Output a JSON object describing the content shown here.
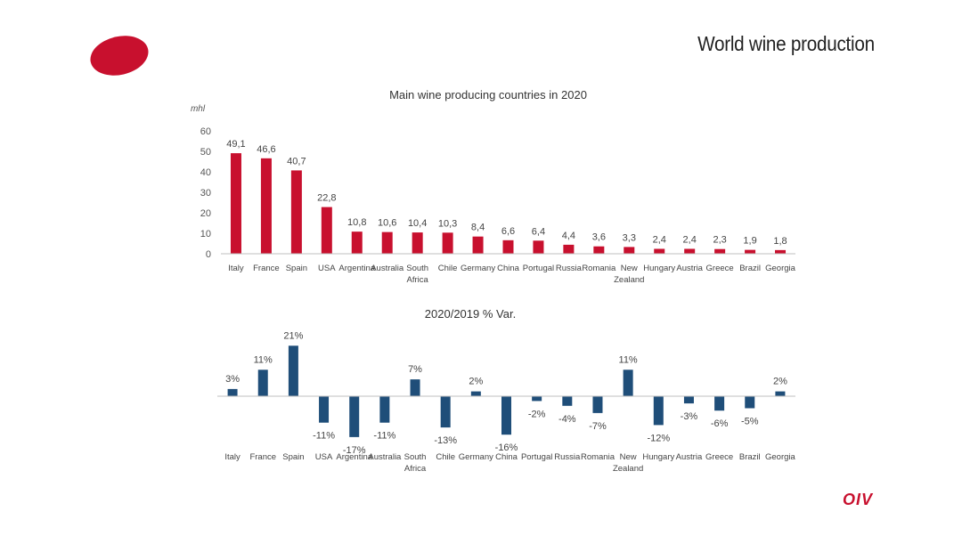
{
  "page": {
    "title": "World wine production",
    "logo_text": "OIV"
  },
  "colors": {
    "production_bar": "#c8102e",
    "variation_bar": "#1f4e79",
    "logo_ellipse": "#c8102e",
    "axis": "#bfbfbf"
  },
  "chart_data": [
    {
      "type": "bar",
      "title": "Main wine producing countries in 2020",
      "ylabel": "mhl",
      "xlabel": "",
      "ylim": [
        0,
        60
      ],
      "yticks": [
        0,
        10,
        20,
        30,
        40,
        50,
        60
      ],
      "grid": false,
      "categories": [
        [
          "Italy"
        ],
        [
          "France"
        ],
        [
          "Spain"
        ],
        [
          "USA"
        ],
        [
          "Argentina"
        ],
        [
          "Australia"
        ],
        [
          "South",
          "Africa"
        ],
        [
          "Chile"
        ],
        [
          "Germany"
        ],
        [
          "China"
        ],
        [
          "Portugal"
        ],
        [
          "Russia"
        ],
        [
          "Romania"
        ],
        [
          "New",
          "Zealand"
        ],
        [
          "Hungary"
        ],
        [
          "Austria"
        ],
        [
          "Greece"
        ],
        [
          "Brazil"
        ],
        [
          "Georgia"
        ]
      ],
      "values": [
        49.1,
        46.6,
        40.7,
        22.8,
        10.8,
        10.6,
        10.4,
        10.3,
        8.4,
        6.6,
        6.4,
        4.4,
        3.6,
        3.3,
        2.4,
        2.4,
        2.3,
        1.9,
        1.8
      ],
      "value_labels": [
        "49,1",
        "46,6",
        "40,7",
        "22,8",
        "10,8",
        "10,6",
        "10,4",
        "10,3",
        "8,4",
        "6,6",
        "6,4",
        "4,4",
        "3,6",
        "3,3",
        "2,4",
        "2,4",
        "2,3",
        "1,9",
        "1,8"
      ]
    },
    {
      "type": "bar",
      "title": "2020/2019 % Var.",
      "ylabel": "",
      "xlabel": "",
      "ylim": [
        -20,
        25
      ],
      "grid": false,
      "categories": [
        [
          "Italy"
        ],
        [
          "France"
        ],
        [
          "Spain"
        ],
        [
          "USA"
        ],
        [
          "Argentina"
        ],
        [
          "Australia"
        ],
        [
          "South",
          "Africa"
        ],
        [
          "Chile"
        ],
        [
          "Germany"
        ],
        [
          "China"
        ],
        [
          "Portugal"
        ],
        [
          "Russia"
        ],
        [
          "Romania"
        ],
        [
          "New",
          "Zealand"
        ],
        [
          "Hungary"
        ],
        [
          "Austria"
        ],
        [
          "Greece"
        ],
        [
          "Brazil"
        ],
        [
          "Georgia"
        ]
      ],
      "values": [
        3,
        11,
        21,
        -11,
        -17,
        -11,
        7,
        -13,
        2,
        -16,
        -2,
        -4,
        -7,
        11,
        -12,
        -3,
        -6,
        -5,
        2
      ],
      "value_labels": [
        "3%",
        "11%",
        "21%",
        "-11%",
        "-17%",
        "-11%",
        "7%",
        "-13%",
        "2%",
        "-16%",
        "-2%",
        "-4%",
        "-7%",
        "11%",
        "-12%",
        "-3%",
        "-6%",
        "-5%",
        "2%"
      ]
    }
  ]
}
